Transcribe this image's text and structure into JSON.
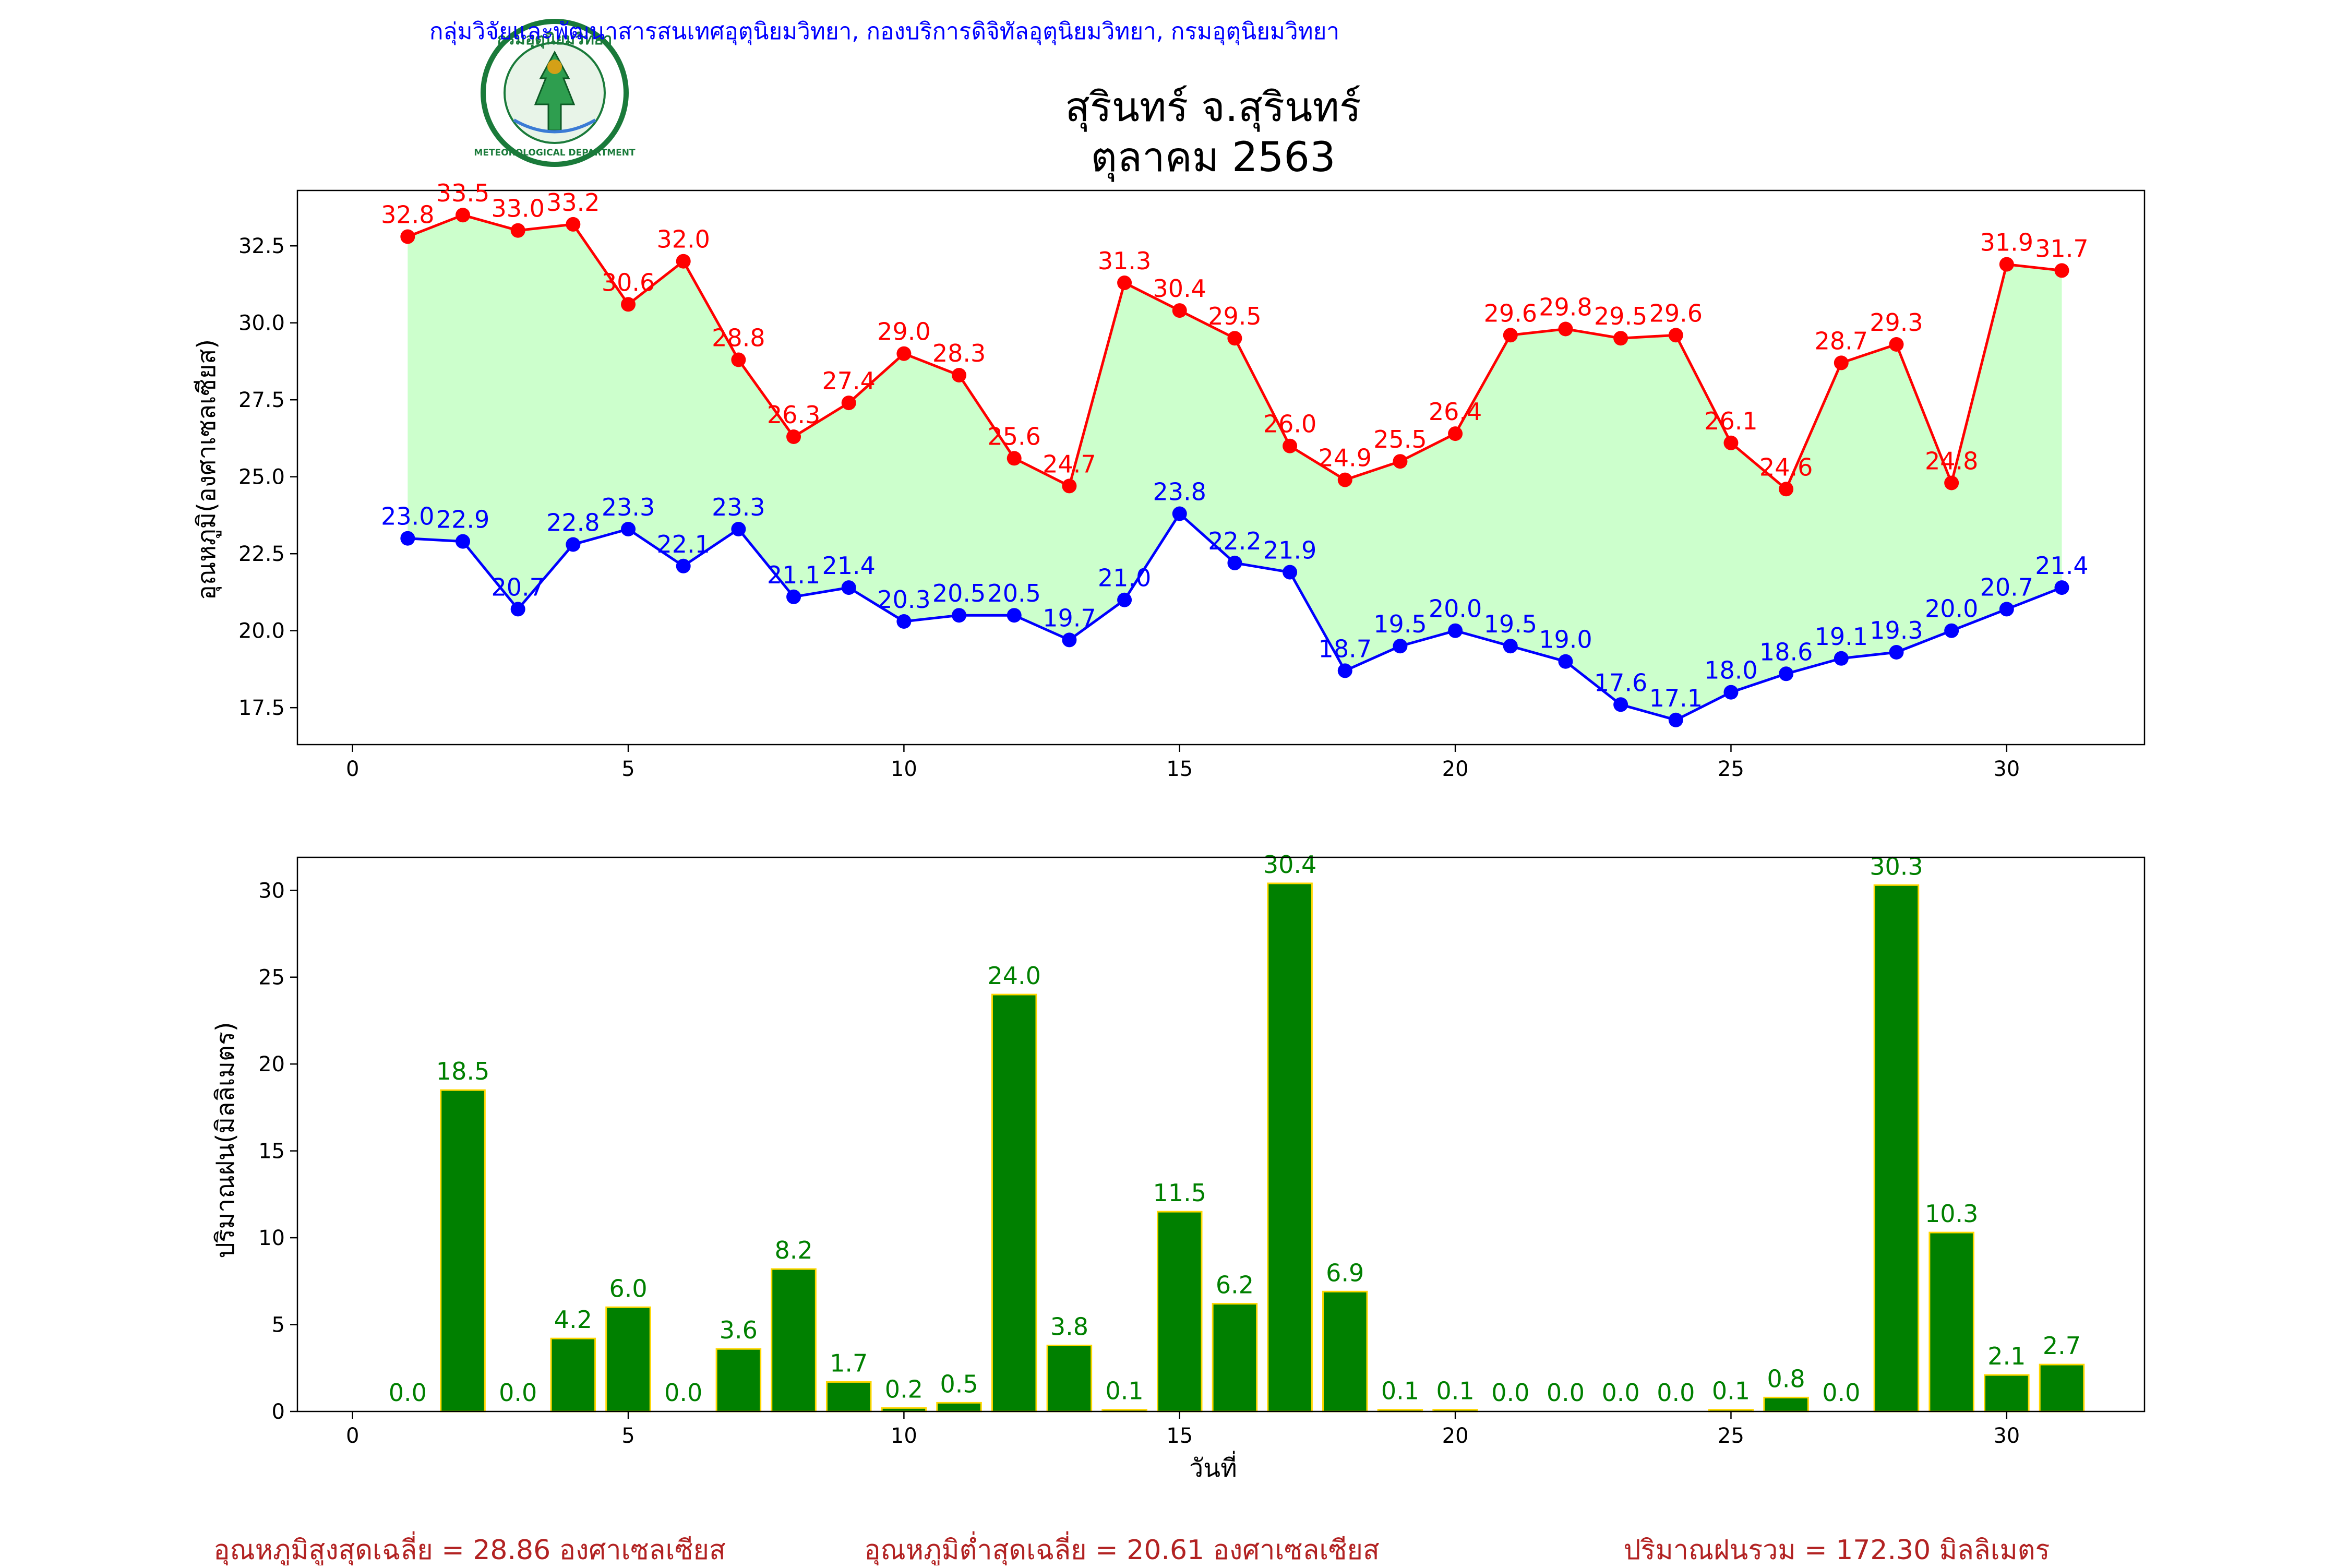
{
  "header": {
    "agency": "กลุ่มวิจัยและพัฒนาสารสนเทศอุตุนิยมวิทยา, กองบริการดิจิทัลอุตุนิยมวิทยา, กรมอุตุนิยมวิทยา",
    "title_line1": "สุรินทร์ จ.สุรินทร์",
    "title_line2": "ตุลาคม 2563",
    "agency_color": "#0000ff"
  },
  "logo": {
    "top_text": "กรมอุตุนิยมวิทยา",
    "bottom_text": "METEOROLOGICAL DEPARTMENT",
    "icon": "meteorological-department-seal"
  },
  "chart_data": [
    {
      "type": "line",
      "ylabel": "อุณหภูมิ(องศาเซลเซียส)",
      "xlabel": "",
      "xlim": [
        -1,
        32.5
      ],
      "ylim": [
        16.3,
        34.3
      ],
      "xticks": [
        0,
        5,
        10,
        15,
        20,
        25,
        30
      ],
      "yticks": [
        17.5,
        20.0,
        22.5,
        25.0,
        27.5,
        30.0,
        32.5
      ],
      "fill_color": "#ccffcc",
      "x": [
        1,
        2,
        3,
        4,
        5,
        6,
        7,
        8,
        9,
        10,
        11,
        12,
        13,
        14,
        15,
        16,
        17,
        18,
        19,
        20,
        21,
        22,
        23,
        24,
        25,
        26,
        27,
        28,
        29,
        30,
        31
      ],
      "series": [
        {
          "color": "#ff0000",
          "values": [
            32.8,
            33.5,
            33.0,
            33.2,
            30.6,
            32.0,
            28.8,
            26.3,
            27.4,
            29.0,
            28.3,
            25.6,
            24.7,
            31.3,
            30.4,
            29.5,
            26.0,
            24.9,
            25.5,
            26.4,
            29.6,
            29.8,
            29.5,
            29.6,
            26.1,
            24.6,
            28.7,
            29.3,
            24.8,
            31.9,
            31.7
          ]
        },
        {
          "color": "#0000ff",
          "values": [
            23.0,
            22.9,
            20.7,
            22.8,
            23.3,
            22.1,
            23.3,
            21.1,
            21.4,
            20.3,
            20.5,
            20.5,
            19.7,
            21.0,
            23.8,
            22.2,
            21.9,
            18.7,
            19.5,
            20.0,
            19.5,
            19.0,
            17.6,
            17.1,
            18.0,
            18.6,
            19.1,
            19.3,
            20.0,
            20.7,
            21.4
          ]
        }
      ]
    },
    {
      "type": "bar",
      "ylabel": "ปริมาณฝน(มิลลิเมตร)",
      "xlabel": "วันที่",
      "xlim": [
        -1,
        32.5
      ],
      "ylim": [
        0,
        31.9
      ],
      "xticks": [
        0,
        5,
        10,
        15,
        20,
        25,
        30
      ],
      "yticks": [
        0,
        5,
        10,
        15,
        20,
        25,
        30
      ],
      "bar_color": "#008000",
      "edge_color": "#ffd700",
      "label_color": "#008000",
      "x": [
        1,
        2,
        3,
        4,
        5,
        6,
        7,
        8,
        9,
        10,
        11,
        12,
        13,
        14,
        15,
        16,
        17,
        18,
        19,
        20,
        21,
        22,
        23,
        24,
        25,
        26,
        27,
        28,
        29,
        30,
        31
      ],
      "values": [
        0.0,
        18.5,
        0.0,
        4.2,
        6.0,
        0.0,
        3.6,
        8.2,
        1.7,
        0.2,
        0.5,
        24.0,
        3.8,
        0.1,
        11.5,
        6.2,
        30.4,
        6.9,
        0.1,
        0.1,
        0.0,
        0.0,
        0.0,
        0.0,
        0.1,
        0.8,
        0.0,
        30.3,
        10.3,
        2.1,
        2.7
      ]
    }
  ],
  "footer": {
    "color": "#b22222",
    "max_avg": "อุณหภูมิสูงสุดเฉลี่ย = 28.86 องศาเซลเซียส",
    "min_avg": "อุณหภูมิต่ำสุดเฉลี่ย = 20.61 องศาเซลเซียส",
    "rain_total": "ปริมาณฝนรวม = 172.30 มิลลิเมตร"
  }
}
